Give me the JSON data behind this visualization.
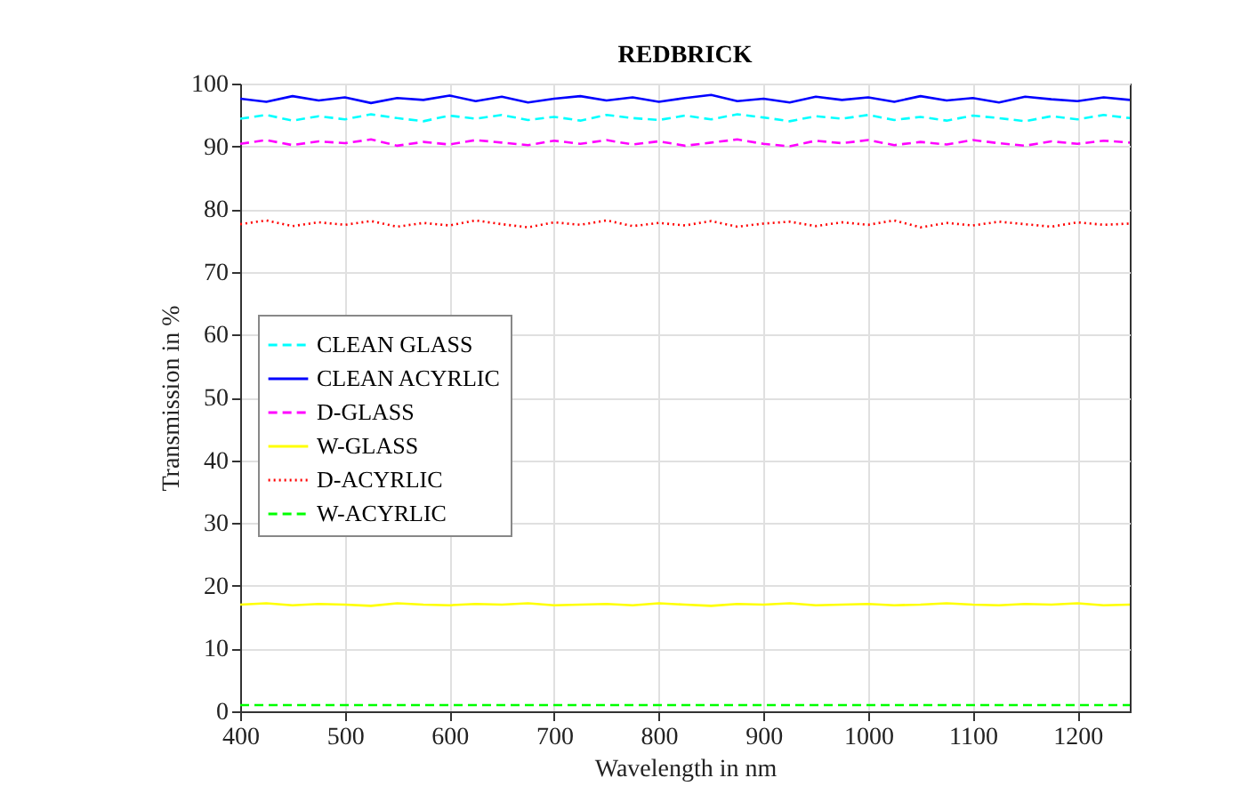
{
  "chart_data": {
    "type": "line",
    "title": "REDBRICK",
    "xlabel": "Wavelength in nm",
    "ylabel": "Transmission in %",
    "x": [
      400,
      425,
      450,
      475,
      500,
      525,
      550,
      575,
      600,
      625,
      650,
      675,
      700,
      725,
      750,
      775,
      800,
      825,
      850,
      875,
      900,
      925,
      950,
      975,
      1000,
      1025,
      1050,
      1075,
      1100,
      1125,
      1150,
      1175,
      1200,
      1225,
      1250
    ],
    "series": [
      {
        "name": "CLEAN GLASS",
        "color": "#00ffff",
        "line_style": "dashed",
        "values": [
          94.4,
          95.0,
          94.1,
          94.8,
          94.3,
          95.1,
          94.5,
          94.0,
          94.9,
          94.4,
          95.0,
          94.2,
          94.7,
          94.1,
          95.0,
          94.5,
          94.2,
          94.9,
          94.3,
          95.1,
          94.6,
          94.0,
          94.8,
          94.4,
          95.0,
          94.2,
          94.7,
          94.1,
          94.9,
          94.5,
          94.0,
          94.8,
          94.3,
          95.0,
          94.5
        ]
      },
      {
        "name": "CLEAN ACYRLIC",
        "color": "#0000ff",
        "line_style": "solid",
        "values": [
          97.6,
          97.1,
          98.0,
          97.3,
          97.8,
          96.9,
          97.7,
          97.4,
          98.1,
          97.2,
          97.9,
          97.0,
          97.6,
          98.0,
          97.3,
          97.8,
          97.1,
          97.7,
          98.2,
          97.2,
          97.6,
          97.0,
          97.9,
          97.4,
          97.8,
          97.1,
          98.0,
          97.3,
          97.7,
          97.0,
          97.9,
          97.5,
          97.2,
          97.8,
          97.4
        ]
      },
      {
        "name": "D-GLASS",
        "color": "#ff00ff",
        "line_style": "dashed",
        "values": [
          90.4,
          91.0,
          90.2,
          90.8,
          90.5,
          91.1,
          90.1,
          90.7,
          90.3,
          91.0,
          90.6,
          90.2,
          90.9,
          90.4,
          91.0,
          90.3,
          90.8,
          90.1,
          90.6,
          91.1,
          90.4,
          90.0,
          90.9,
          90.5,
          91.0,
          90.2,
          90.7,
          90.3,
          91.0,
          90.5,
          90.1,
          90.8,
          90.4,
          90.9,
          90.6
        ]
      },
      {
        "name": "W-GLASS",
        "color": "#ffff00",
        "line_style": "solid",
        "values": [
          17.0,
          17.2,
          16.9,
          17.1,
          17.0,
          16.8,
          17.2,
          17.0,
          16.9,
          17.1,
          17.0,
          17.2,
          16.9,
          17.0,
          17.1,
          16.9,
          17.2,
          17.0,
          16.8,
          17.1,
          17.0,
          17.2,
          16.9,
          17.0,
          17.1,
          16.9,
          17.0,
          17.2,
          17.0,
          16.9,
          17.1,
          17.0,
          17.2,
          16.9,
          17.0
        ]
      },
      {
        "name": "D-ACYRLIC",
        "color": "#ff0000",
        "line_style": "dotted",
        "values": [
          77.6,
          78.2,
          77.3,
          77.9,
          77.5,
          78.1,
          77.2,
          77.8,
          77.4,
          78.2,
          77.6,
          77.1,
          77.9,
          77.5,
          78.2,
          77.3,
          77.8,
          77.4,
          78.1,
          77.2,
          77.7,
          78.0,
          77.3,
          77.9,
          77.5,
          78.2,
          77.1,
          77.8,
          77.4,
          78.0,
          77.6,
          77.2,
          77.9,
          77.5,
          77.7
        ]
      },
      {
        "name": "W-ACYRLIC",
        "color": "#00ff00",
        "line_style": "dashed",
        "values": [
          1,
          1,
          1,
          1,
          1,
          1,
          1,
          1,
          1,
          1,
          1,
          1,
          1,
          1,
          1,
          1,
          1,
          1,
          1,
          1,
          1,
          1,
          1,
          1,
          1,
          1,
          1,
          1,
          1,
          1,
          1,
          1,
          1,
          1,
          1
        ]
      }
    ],
    "xlim": [
      400,
      1250
    ],
    "xticks": [
      400,
      500,
      600,
      700,
      800,
      900,
      1000,
      1100,
      1200
    ],
    "ylim": [
      0,
      100
    ],
    "yticks": [
      0,
      10,
      20,
      30,
      40,
      50,
      60,
      70,
      80,
      90,
      100
    ],
    "grid": true,
    "legend": "left"
  }
}
